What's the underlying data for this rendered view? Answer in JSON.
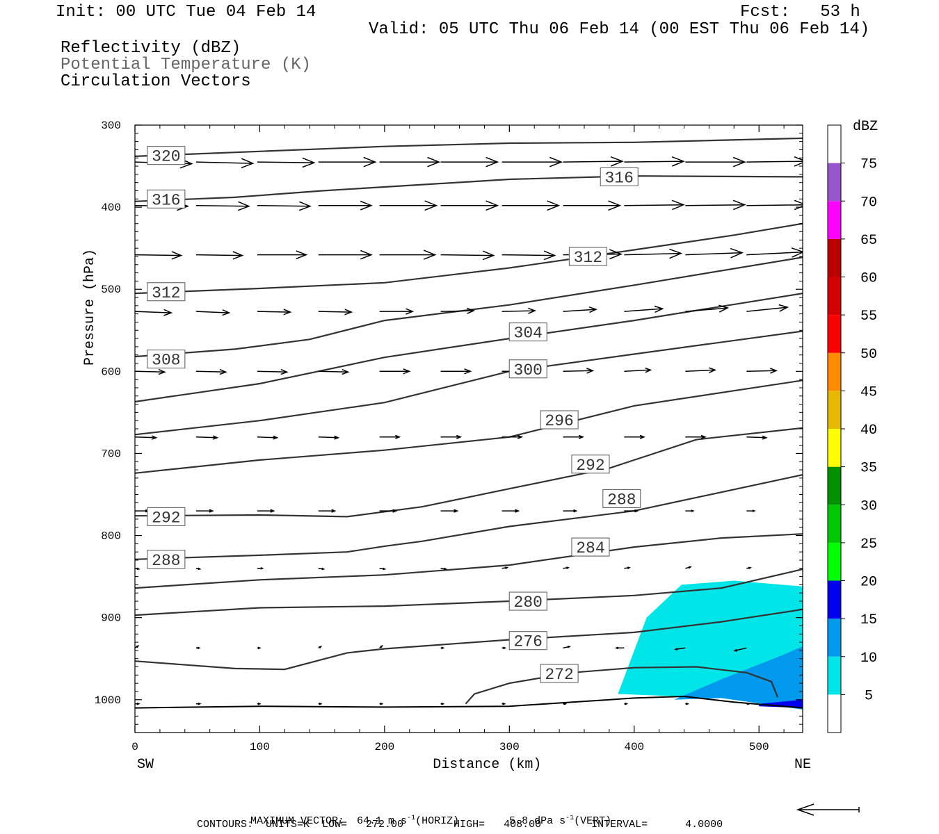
{
  "header": {
    "init": "Init: 00 UTC Tue 04 Feb 14",
    "fcst": "Fcst:   53 h",
    "valid": "Valid: 05 UTC Thu 06 Feb 14 (00 EST Thu 06 Feb 14)",
    "fields": [
      {
        "label": "Reflectivity (dBZ)",
        "color": "#000000"
      },
      {
        "label": "Potential Temperature (K)",
        "color": "#666666"
      },
      {
        "label": "Circulation Vectors",
        "color": "#000000"
      }
    ]
  },
  "footer": {
    "max_vector": "MAXIMUM VECTOR:  64.1 m s",
    "horiz": "(HORIZ)",
    "vert_value": "5.8 dPa s",
    "vert": "(VERT)",
    "exp": "-1",
    "contours": "CONTOURS:  UNITS=K  LOW=   272.00        HIGH=   408.00        INTERVAL=      4.0000"
  },
  "chart_data": {
    "type": "cross-section",
    "xlabel": "Distance (km)",
    "ylabel": "Pressure (hPa)",
    "x_ticks": [
      0,
      100,
      200,
      300,
      400,
      500
    ],
    "y_ticks": [
      300,
      400,
      500,
      600,
      700,
      800,
      900,
      1000
    ],
    "xlim": [
      0,
      535
    ],
    "ylim": [
      1040,
      300
    ],
    "x_end_labels": {
      "left": "SW",
      "right": "NE"
    },
    "colorbar": {
      "title": "dBZ",
      "levels": [
        5,
        10,
        15,
        20,
        25,
        30,
        35,
        40,
        45,
        50,
        55,
        60,
        65,
        70,
        75
      ],
      "colors": [
        "#00e5e8",
        "#0099ee",
        "#0000ee",
        "#00ff00",
        "#00c800",
        "#009000",
        "#ffff00",
        "#e6b800",
        "#ff8c00",
        "#ff0000",
        "#d40000",
        "#bb0000",
        "#ff00ff",
        "#9955cc",
        "#ffffff"
      ]
    },
    "reflectivity": [
      {
        "level": 5,
        "color": "#00e5e8",
        "points": [
          [
            387,
            993
          ],
          [
            410,
            900
          ],
          [
            438,
            860
          ],
          [
            480,
            855
          ],
          [
            535,
            862
          ],
          [
            535,
            1012
          ],
          [
            470,
            998
          ],
          [
            387,
            993
          ]
        ]
      },
      {
        "level": 10,
        "color": "#0099ee",
        "points": [
          [
            432,
            1000
          ],
          [
            470,
            975
          ],
          [
            520,
            945
          ],
          [
            535,
            935
          ],
          [
            535,
            1012
          ],
          [
            470,
            998
          ],
          [
            432,
            1000
          ]
        ]
      },
      {
        "level": 15,
        "color": "#0000ee",
        "points": [
          [
            500,
            1005
          ],
          [
            535,
            1000
          ],
          [
            535,
            1010
          ],
          [
            500,
            1008
          ]
        ]
      }
    ],
    "theta_contours": [
      {
        "value": 320,
        "labels": [
          [
            25,
            337
          ]
        ],
        "points": [
          [
            0,
            338
          ],
          [
            100,
            332
          ],
          [
            200,
            326
          ],
          [
            300,
            322
          ],
          [
            400,
            321
          ],
          [
            535,
            316
          ]
        ]
      },
      {
        "value": 316,
        "labels": [
          [
            25,
            390
          ],
          [
            388,
            363
          ]
        ],
        "points": [
          [
            0,
            393
          ],
          [
            80,
            388
          ],
          [
            150,
            380
          ],
          [
            300,
            366
          ],
          [
            400,
            362
          ],
          [
            535,
            363
          ]
        ]
      },
      {
        "value": 312,
        "labels": [
          [
            25,
            503
          ],
          [
            363,
            460
          ]
        ],
        "points": [
          [
            0,
            505
          ],
          [
            100,
            499
          ],
          [
            200,
            492
          ],
          [
            300,
            474
          ],
          [
            400,
            452
          ],
          [
            480,
            434
          ],
          [
            535,
            420
          ]
        ]
      },
      {
        "value": 308,
        "labels": [
          [
            25,
            585
          ]
        ],
        "points": [
          [
            0,
            582
          ],
          [
            80,
            573
          ],
          [
            140,
            561
          ],
          [
            200,
            538
          ],
          [
            300,
            519
          ],
          [
            400,
            495
          ],
          [
            535,
            461
          ]
        ]
      },
      {
        "value": 304,
        "labels": [
          [
            315,
            552
          ]
        ],
        "points": [
          [
            0,
            637
          ],
          [
            100,
            615
          ],
          [
            200,
            583
          ],
          [
            300,
            560
          ],
          [
            400,
            538
          ],
          [
            535,
            505
          ]
        ]
      },
      {
        "value": 300,
        "labels": [
          [
            315,
            597
          ]
        ],
        "points": [
          [
            0,
            677
          ],
          [
            100,
            660
          ],
          [
            200,
            638
          ],
          [
            300,
            600
          ],
          [
            400,
            579
          ],
          [
            535,
            551
          ]
        ]
      },
      {
        "value": 296,
        "labels": [
          [
            340,
            659
          ]
        ],
        "points": [
          [
            0,
            724
          ],
          [
            100,
            708
          ],
          [
            200,
            696
          ],
          [
            300,
            680
          ],
          [
            400,
            642
          ],
          [
            535,
            611
          ]
        ]
      },
      {
        "value": 292,
        "labels": [
          [
            25,
            777
          ],
          [
            365,
            713
          ]
        ],
        "points": [
          [
            0,
            776
          ],
          [
            100,
            775
          ],
          [
            170,
            777
          ],
          [
            230,
            765
          ],
          [
            300,
            743
          ],
          [
            380,
            718
          ],
          [
            450,
            683
          ],
          [
            535,
            669
          ]
        ]
      },
      {
        "value": 288,
        "labels": [
          [
            25,
            829
          ],
          [
            390,
            755
          ]
        ],
        "points": [
          [
            0,
            829
          ],
          [
            100,
            824
          ],
          [
            170,
            820
          ],
          [
            200,
            813
          ],
          [
            230,
            807
          ],
          [
            300,
            789
          ],
          [
            400,
            770
          ],
          [
            535,
            726
          ]
        ]
      },
      {
        "value": 284,
        "labels": [
          [
            365,
            814
          ]
        ],
        "points": [
          [
            0,
            864
          ],
          [
            100,
            854
          ],
          [
            200,
            848
          ],
          [
            300,
            836
          ],
          [
            400,
            814
          ],
          [
            470,
            803
          ],
          [
            535,
            798
          ]
        ]
      },
      {
        "value": 280,
        "labels": [
          [
            315,
            880
          ]
        ],
        "points": [
          [
            0,
            897
          ],
          [
            100,
            888
          ],
          [
            200,
            886
          ],
          [
            300,
            880
          ],
          [
            400,
            873
          ],
          [
            470,
            864
          ],
          [
            535,
            841
          ]
        ]
      },
      {
        "value": 276,
        "labels": [
          [
            315,
            928
          ]
        ],
        "points": [
          [
            0,
            953
          ],
          [
            80,
            962
          ],
          [
            120,
            963
          ],
          [
            170,
            943
          ],
          [
            200,
            938
          ],
          [
            300,
            927
          ],
          [
            400,
            918
          ],
          [
            470,
            905
          ],
          [
            535,
            890
          ]
        ]
      },
      {
        "value": 272,
        "labels": [
          [
            340,
            968
          ]
        ],
        "points": [
          [
            265,
            1005
          ],
          [
            272,
            993
          ],
          [
            300,
            980
          ],
          [
            350,
            967
          ],
          [
            400,
            961
          ],
          [
            450,
            960
          ],
          [
            490,
            967
          ],
          [
            510,
            978
          ],
          [
            515,
            997
          ]
        ]
      }
    ],
    "surface": [
      [
        0,
        1010
      ],
      [
        100,
        1008
      ],
      [
        200,
        1009
      ],
      [
        300,
        1008
      ],
      [
        400,
        998
      ],
      [
        440,
        996
      ],
      [
        480,
        1003
      ],
      [
        535,
        1010
      ]
    ],
    "vector_rows": [
      {
        "p": 345,
        "u": [
          0.86,
          0.86,
          0.86,
          0.86,
          0.9,
          0.86,
          0.9,
          0.9,
          0.9,
          0.9,
          0.9
        ],
        "v": [
          2.5,
          2,
          1,
          0,
          0,
          0,
          0,
          -1,
          -1,
          0,
          -1
        ]
      },
      {
        "p": 398,
        "u": [
          0.8,
          0.8,
          0.8,
          0.8,
          0.86,
          0.86,
          0.86,
          0.86,
          0.9,
          0.9,
          0.9
        ],
        "v": [
          1,
          1,
          1,
          0,
          0,
          0,
          0,
          0,
          -1,
          -1,
          -1
        ]
      },
      {
        "p": 458,
        "u": [
          0.7,
          0.7,
          0.74,
          0.8,
          0.84,
          0.8,
          0.8,
          0.88,
          0.86,
          0.86,
          0.86
        ],
        "v": [
          1,
          1,
          0,
          0,
          0,
          1,
          1,
          -1,
          -2,
          -3,
          -4
        ]
      },
      {
        "p": 527,
        "u": [
          0.55,
          0.5,
          0.5,
          0.5,
          0.5,
          0.5,
          0.5,
          0.5,
          0.58,
          0.64,
          0.62
        ],
        "v": [
          2,
          2,
          1,
          1,
          0,
          -1,
          -1,
          -3,
          -4,
          -5,
          -6
        ]
      },
      {
        "p": 600,
        "u": [
          0.45,
          0.45,
          0.45,
          0.45,
          0.45,
          0.45,
          0.45,
          0.45,
          0.4,
          0.45,
          0.45
        ],
        "v": [
          1,
          1,
          1,
          1,
          0,
          0,
          0,
          -1,
          -2,
          -2,
          -1
        ]
      },
      {
        "p": 680,
        "u": [
          0.32,
          0.32,
          0.3,
          0.3,
          0.3,
          0.3,
          0.3,
          0.3,
          0.3,
          0.3,
          0.3
        ],
        "v": [
          1,
          1,
          1,
          1,
          0,
          0,
          0,
          0,
          0,
          0,
          1
        ]
      },
      {
        "p": 770,
        "u": [
          0.2,
          0.25,
          0.25,
          0.25,
          0.25,
          0.25,
          0.25,
          0.2,
          0.2,
          0.12,
          0.12
        ],
        "v": [
          0,
          0,
          0,
          0,
          0,
          0,
          0,
          0,
          0,
          0,
          0
        ]
      },
      {
        "p": 840,
        "u": [
          0.06,
          0.06,
          0.08,
          0.08,
          0.08,
          0.08,
          0.08,
          0.08,
          0.08,
          0.08,
          0.06
        ],
        "v": [
          1,
          1,
          0,
          1,
          1,
          1,
          -1,
          -1,
          -1,
          -2,
          -1
        ]
      },
      {
        "p": 937,
        "u": [
          0.05,
          0.05,
          0.04,
          0.04,
          0.04,
          0.04,
          0.05,
          0.1,
          -0.12,
          -0.15,
          -0.18
        ],
        "v": [
          -3,
          0,
          0,
          -2,
          -3,
          0,
          0,
          -2,
          0,
          2,
          4
        ]
      },
      {
        "p": 1005,
        "u": [
          0.06,
          0.06,
          0.04,
          0.04,
          0.04,
          0.04,
          0.04,
          0.04,
          0.04,
          0.04,
          0.04
        ],
        "v": [
          0,
          0,
          0,
          0,
          0,
          0,
          0,
          0,
          0,
          0,
          0
        ]
      }
    ]
  }
}
